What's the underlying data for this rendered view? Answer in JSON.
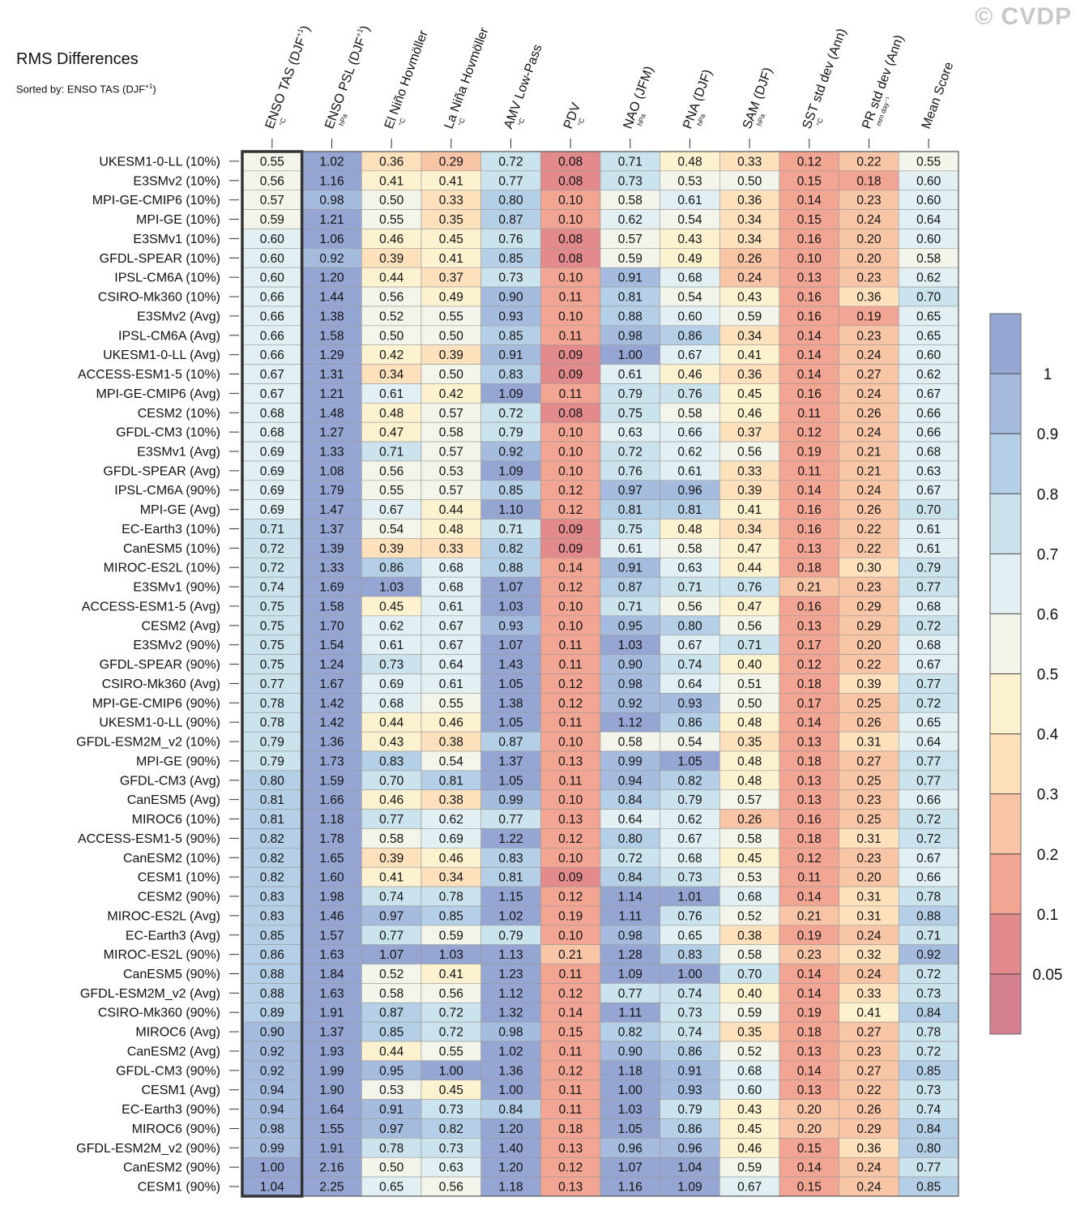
{
  "title": "RMS Differences",
  "subtitle_prefix": "Sorted by: ENSO TAS (DJF",
  "subtitle_sup": "+1",
  "subtitle_suffix": ")",
  "watermark": "© CVDP",
  "chart_data": {
    "type": "heatmap",
    "columns": [
      {
        "label": "ENSO TAS (DJF",
        "sup": "+1",
        "suffix": ")",
        "unit": "°C"
      },
      {
        "label": "ENSO PSL (DJF",
        "sup": "+1",
        "suffix": ")",
        "unit": "hPa"
      },
      {
        "label": "El Niño Hovmöller",
        "sup": "",
        "suffix": "",
        "unit": "°C"
      },
      {
        "label": "La Niña Hovmöller",
        "sup": "",
        "suffix": "",
        "unit": "°C"
      },
      {
        "label": "AMV Low-Pass",
        "sup": "",
        "suffix": "",
        "unit": "°C"
      },
      {
        "label": "PDV",
        "sup": "",
        "suffix": "",
        "unit": "°C"
      },
      {
        "label": "NAO (JFM)",
        "sup": "",
        "suffix": "",
        "unit": "hPa"
      },
      {
        "label": "PNA (DJF)",
        "sup": "",
        "suffix": "",
        "unit": "hPa"
      },
      {
        "label": "SAM (DJF)",
        "sup": "",
        "suffix": "",
        "unit": "hPa"
      },
      {
        "label": "SST std dev (Ann)",
        "sup": "",
        "suffix": "",
        "unit": "°C"
      },
      {
        "label": "PR std dev (Ann)",
        "sup": "",
        "suffix": "",
        "unit": "mm day⁻¹"
      },
      {
        "label": "Mean Score",
        "sup": "",
        "suffix": "",
        "unit": ""
      }
    ],
    "rows": [
      "UKESM1-0-LL (10%)",
      "E3SMv2 (10%)",
      "MPI-GE-CMIP6 (10%)",
      "MPI-GE (10%)",
      "E3SMv1 (10%)",
      "GFDL-SPEAR (10%)",
      "IPSL-CM6A (10%)",
      "CSIRO-Mk360 (10%)",
      "E3SMv2 (Avg)",
      "IPSL-CM6A (Avg)",
      "UKESM1-0-LL (Avg)",
      "ACCESS-ESM1-5 (10%)",
      "MPI-GE-CMIP6 (Avg)",
      "CESM2 (10%)",
      "GFDL-CM3 (10%)",
      "E3SMv1 (Avg)",
      "GFDL-SPEAR (Avg)",
      "IPSL-CM6A (90%)",
      "MPI-GE (Avg)",
      "EC-Earth3 (10%)",
      "CanESM5 (10%)",
      "MIROC-ES2L (10%)",
      "E3SMv1 (90%)",
      "ACCESS-ESM1-5 (Avg)",
      "CESM2 (Avg)",
      "E3SMv2 (90%)",
      "GFDL-SPEAR (90%)",
      "CSIRO-Mk360 (Avg)",
      "MPI-GE-CMIP6 (90%)",
      "UKESM1-0-LL (90%)",
      "GFDL-ESM2M_v2 (10%)",
      "MPI-GE (90%)",
      "GFDL-CM3 (Avg)",
      "CanESM5 (Avg)",
      "MIROC6 (10%)",
      "ACCESS-ESM1-5 (90%)",
      "CanESM2 (10%)",
      "CESM1 (10%)",
      "CESM2 (90%)",
      "MIROC-ES2L (Avg)",
      "EC-Earth3 (Avg)",
      "MIROC-ES2L (90%)",
      "CanESM5 (90%)",
      "GFDL-ESM2M_v2 (Avg)",
      "CSIRO-Mk360 (90%)",
      "MIROC6 (Avg)",
      "CanESM2 (Avg)",
      "GFDL-CM3 (90%)",
      "CESM1 (Avg)",
      "EC-Earth3 (90%)",
      "MIROC6 (90%)",
      "GFDL-ESM2M_v2 (90%)",
      "CanESM2 (90%)",
      "CESM1 (90%)"
    ],
    "values": [
      [
        0.55,
        1.02,
        0.36,
        0.29,
        0.72,
        0.08,
        0.71,
        0.48,
        0.33,
        0.12,
        0.22,
        0.55
      ],
      [
        0.56,
        1.16,
        0.41,
        0.41,
        0.77,
        0.08,
        0.73,
        0.53,
        0.5,
        0.15,
        0.18,
        0.6
      ],
      [
        0.57,
        0.98,
        0.5,
        0.33,
        0.8,
        0.1,
        0.58,
        0.61,
        0.36,
        0.14,
        0.23,
        0.6
      ],
      [
        0.59,
        1.21,
        0.55,
        0.35,
        0.87,
        0.1,
        0.62,
        0.54,
        0.34,
        0.15,
        0.24,
        0.64
      ],
      [
        0.6,
        1.06,
        0.46,
        0.45,
        0.76,
        0.08,
        0.57,
        0.43,
        0.34,
        0.16,
        0.2,
        0.6
      ],
      [
        0.6,
        0.92,
        0.39,
        0.41,
        0.85,
        0.08,
        0.59,
        0.49,
        0.26,
        0.1,
        0.2,
        0.58
      ],
      [
        0.6,
        1.2,
        0.44,
        0.37,
        0.73,
        0.1,
        0.91,
        0.68,
        0.24,
        0.13,
        0.23,
        0.62
      ],
      [
        0.66,
        1.44,
        0.56,
        0.49,
        0.9,
        0.11,
        0.81,
        0.54,
        0.43,
        0.16,
        0.36,
        0.7
      ],
      [
        0.66,
        1.38,
        0.52,
        0.55,
        0.93,
        0.1,
        0.88,
        0.6,
        0.59,
        0.16,
        0.19,
        0.65
      ],
      [
        0.66,
        1.58,
        0.5,
        0.5,
        0.85,
        0.11,
        0.98,
        0.86,
        0.34,
        0.14,
        0.23,
        0.65
      ],
      [
        0.66,
        1.29,
        0.42,
        0.39,
        0.91,
        0.09,
        1.0,
        0.67,
        0.41,
        0.14,
        0.24,
        0.6
      ],
      [
        0.67,
        1.31,
        0.34,
        0.5,
        0.83,
        0.09,
        0.61,
        0.46,
        0.36,
        0.14,
        0.27,
        0.62
      ],
      [
        0.67,
        1.21,
        0.61,
        0.42,
        1.09,
        0.11,
        0.79,
        0.76,
        0.45,
        0.16,
        0.24,
        0.67
      ],
      [
        0.68,
        1.48,
        0.48,
        0.57,
        0.72,
        0.08,
        0.75,
        0.58,
        0.46,
        0.11,
        0.26,
        0.66
      ],
      [
        0.68,
        1.27,
        0.47,
        0.58,
        0.79,
        0.1,
        0.63,
        0.66,
        0.37,
        0.12,
        0.24,
        0.66
      ],
      [
        0.69,
        1.33,
        0.71,
        0.57,
        0.92,
        0.1,
        0.72,
        0.62,
        0.56,
        0.19,
        0.21,
        0.68
      ],
      [
        0.69,
        1.08,
        0.56,
        0.53,
        1.09,
        0.1,
        0.76,
        0.61,
        0.33,
        0.11,
        0.21,
        0.63
      ],
      [
        0.69,
        1.79,
        0.55,
        0.57,
        0.85,
        0.12,
        0.97,
        0.96,
        0.39,
        0.14,
        0.24,
        0.67
      ],
      [
        0.69,
        1.47,
        0.67,
        0.44,
        1.1,
        0.12,
        0.81,
        0.81,
        0.41,
        0.16,
        0.26,
        0.7
      ],
      [
        0.71,
        1.37,
        0.54,
        0.48,
        0.71,
        0.09,
        0.75,
        0.48,
        0.34,
        0.16,
        0.22,
        0.61
      ],
      [
        0.72,
        1.39,
        0.39,
        0.33,
        0.82,
        0.09,
        0.61,
        0.58,
        0.47,
        0.13,
        0.22,
        0.61
      ],
      [
        0.72,
        1.33,
        0.86,
        0.68,
        0.88,
        0.14,
        0.91,
        0.63,
        0.44,
        0.18,
        0.3,
        0.79
      ],
      [
        0.74,
        1.69,
        1.03,
        0.68,
        1.07,
        0.12,
        0.87,
        0.71,
        0.76,
        0.21,
        0.23,
        0.77
      ],
      [
        0.75,
        1.58,
        0.45,
        0.61,
        1.03,
        0.1,
        0.71,
        0.56,
        0.47,
        0.16,
        0.29,
        0.68
      ],
      [
        0.75,
        1.7,
        0.62,
        0.67,
        0.93,
        0.1,
        0.95,
        0.8,
        0.56,
        0.13,
        0.29,
        0.72
      ],
      [
        0.75,
        1.54,
        0.61,
        0.67,
        1.07,
        0.11,
        1.03,
        0.67,
        0.71,
        0.17,
        0.2,
        0.68
      ],
      [
        0.75,
        1.24,
        0.73,
        0.64,
        1.43,
        0.11,
        0.9,
        0.74,
        0.4,
        0.12,
        0.22,
        0.67
      ],
      [
        0.77,
        1.67,
        0.69,
        0.61,
        1.05,
        0.12,
        0.98,
        0.64,
        0.51,
        0.18,
        0.39,
        0.77
      ],
      [
        0.78,
        1.42,
        0.68,
        0.55,
        1.38,
        0.12,
        0.92,
        0.93,
        0.5,
        0.17,
        0.25,
        0.72
      ],
      [
        0.78,
        1.42,
        0.44,
        0.46,
        1.05,
        0.11,
        1.12,
        0.86,
        0.48,
        0.14,
        0.26,
        0.65
      ],
      [
        0.79,
        1.36,
        0.43,
        0.38,
        0.87,
        0.1,
        0.58,
        0.54,
        0.35,
        0.13,
        0.31,
        0.64
      ],
      [
        0.79,
        1.73,
        0.83,
        0.54,
        1.37,
        0.13,
        0.99,
        1.05,
        0.48,
        0.18,
        0.27,
        0.77
      ],
      [
        0.8,
        1.59,
        0.7,
        0.81,
        1.05,
        0.11,
        0.94,
        0.82,
        0.48,
        0.13,
        0.25,
        0.77
      ],
      [
        0.81,
        1.66,
        0.46,
        0.38,
        0.99,
        0.1,
        0.84,
        0.79,
        0.57,
        0.13,
        0.23,
        0.66
      ],
      [
        0.81,
        1.18,
        0.77,
        0.62,
        0.77,
        0.13,
        0.64,
        0.62,
        0.26,
        0.16,
        0.25,
        0.72
      ],
      [
        0.82,
        1.78,
        0.58,
        0.69,
        1.22,
        0.12,
        0.8,
        0.67,
        0.58,
        0.18,
        0.31,
        0.72
      ],
      [
        0.82,
        1.65,
        0.39,
        0.46,
        0.83,
        0.1,
        0.72,
        0.68,
        0.45,
        0.12,
        0.23,
        0.67
      ],
      [
        0.82,
        1.6,
        0.41,
        0.34,
        0.81,
        0.09,
        0.84,
        0.73,
        0.53,
        0.11,
        0.2,
        0.66
      ],
      [
        0.83,
        1.98,
        0.74,
        0.78,
        1.15,
        0.12,
        1.14,
        1.01,
        0.68,
        0.14,
        0.31,
        0.78
      ],
      [
        0.83,
        1.46,
        0.97,
        0.85,
        1.02,
        0.19,
        1.11,
        0.76,
        0.52,
        0.21,
        0.31,
        0.88
      ],
      [
        0.85,
        1.57,
        0.77,
        0.59,
        0.79,
        0.1,
        0.98,
        0.65,
        0.38,
        0.19,
        0.24,
        0.71
      ],
      [
        0.86,
        1.63,
        1.07,
        1.03,
        1.13,
        0.21,
        1.28,
        0.83,
        0.58,
        0.23,
        0.32,
        0.92
      ],
      [
        0.88,
        1.84,
        0.52,
        0.41,
        1.23,
        0.11,
        1.09,
        1.0,
        0.7,
        0.14,
        0.24,
        0.72
      ],
      [
        0.88,
        1.63,
        0.58,
        0.56,
        1.12,
        0.12,
        0.77,
        0.74,
        0.4,
        0.14,
        0.33,
        0.73
      ],
      [
        0.89,
        1.91,
        0.87,
        0.72,
        1.32,
        0.14,
        1.11,
        0.73,
        0.59,
        0.19,
        0.41,
        0.84
      ],
      [
        0.9,
        1.37,
        0.85,
        0.72,
        0.98,
        0.15,
        0.82,
        0.74,
        0.35,
        0.18,
        0.27,
        0.78
      ],
      [
        0.92,
        1.93,
        0.44,
        0.55,
        1.02,
        0.11,
        0.9,
        0.86,
        0.52,
        0.13,
        0.23,
        0.72
      ],
      [
        0.92,
        1.99,
        0.95,
        1.0,
        1.36,
        0.12,
        1.18,
        0.91,
        0.68,
        0.14,
        0.27,
        0.85
      ],
      [
        0.94,
        1.9,
        0.53,
        0.45,
        1.0,
        0.11,
        1.0,
        0.93,
        0.6,
        0.13,
        0.22,
        0.73
      ],
      [
        0.94,
        1.64,
        0.91,
        0.73,
        0.84,
        0.11,
        1.03,
        0.79,
        0.43,
        0.2,
        0.26,
        0.74
      ],
      [
        0.98,
        1.55,
        0.97,
        0.82,
        1.2,
        0.18,
        1.05,
        0.86,
        0.45,
        0.2,
        0.29,
        0.84
      ],
      [
        0.99,
        1.91,
        0.78,
        0.73,
        1.4,
        0.13,
        0.96,
        0.96,
        0.46,
        0.15,
        0.36,
        0.8
      ],
      [
        1.0,
        2.16,
        0.5,
        0.63,
        1.2,
        0.12,
        1.07,
        1.04,
        0.59,
        0.14,
        0.24,
        0.77
      ],
      [
        1.04,
        2.25,
        0.65,
        0.56,
        1.18,
        0.13,
        1.16,
        1.09,
        0.67,
        0.15,
        0.24,
        0.85
      ]
    ],
    "sorted_column": 0,
    "colorbar": {
      "levels": [
        0.05,
        0.1,
        0.2,
        0.3,
        0.4,
        0.5,
        0.6,
        0.7,
        0.8,
        0.9,
        1
      ],
      "colors": [
        "#d4808f",
        "#e38a8c",
        "#f2a592",
        "#f8c5a6",
        "#fde1bd",
        "#fdf2d0",
        "#f3f4ea",
        "#e2f0f3",
        "#cbe3ed",
        "#b5d0e6",
        "#a5bcdf",
        "#96a6d3"
      ],
      "tick_labels": [
        "0.05",
        "0.1",
        "0.2",
        "0.3",
        "0.4",
        "0.5",
        "0.6",
        "0.7",
        "0.8",
        "0.9",
        "1"
      ]
    }
  }
}
